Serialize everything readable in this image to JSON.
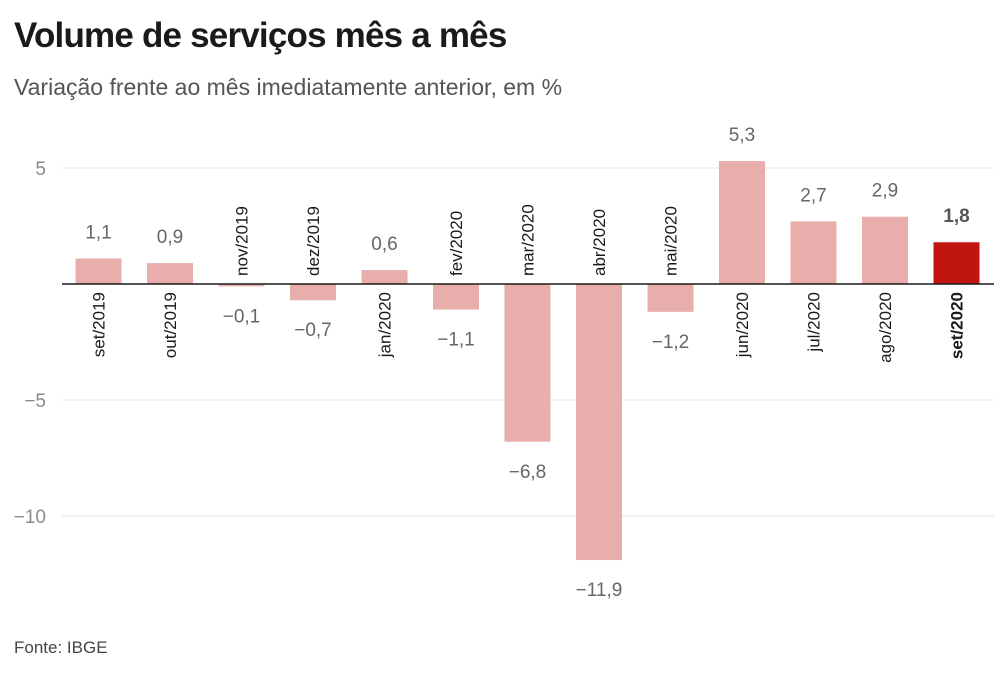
{
  "header": {
    "title": "Volume de serviços mês a mês",
    "subtitle": "Variação frente ao mês imediatamente anterior, em %"
  },
  "footer": {
    "source": "Fonte: IBGE"
  },
  "colors": {
    "bar": "#e8aeab",
    "highlight": "#c0160f",
    "grid": "#e3e3e3",
    "baseline": "#1a1a1a"
  },
  "chart_data": {
    "type": "bar",
    "categories": [
      "set/2019",
      "out/2019",
      "nov/2019",
      "dez/2019",
      "jan/2020",
      "fev/2020",
      "mar/2020",
      "abr/2020",
      "mai/2020",
      "jun/2020",
      "jul/2020",
      "ago/2020",
      "set/2020"
    ],
    "values": [
      1.1,
      0.9,
      -0.1,
      -0.7,
      0.6,
      -1.1,
      -6.8,
      -11.9,
      -1.2,
      5.3,
      2.7,
      2.9,
      1.8
    ],
    "value_labels": [
      "1,1",
      "0,9",
      "−0,1",
      "−0,7",
      "0,6",
      "−1,1",
      "−6,8",
      "−11,9",
      "−1,2",
      "5,3",
      "2,7",
      "2,9",
      "1,8"
    ],
    "highlight_category": "set/2020",
    "yticks": [
      5,
      -5,
      -10
    ],
    "ytick_labels": [
      "5",
      "−5",
      "−10"
    ],
    "ylim": [
      -12.5,
      6.5
    ],
    "grid": true,
    "xlabel": "",
    "ylabel": ""
  }
}
